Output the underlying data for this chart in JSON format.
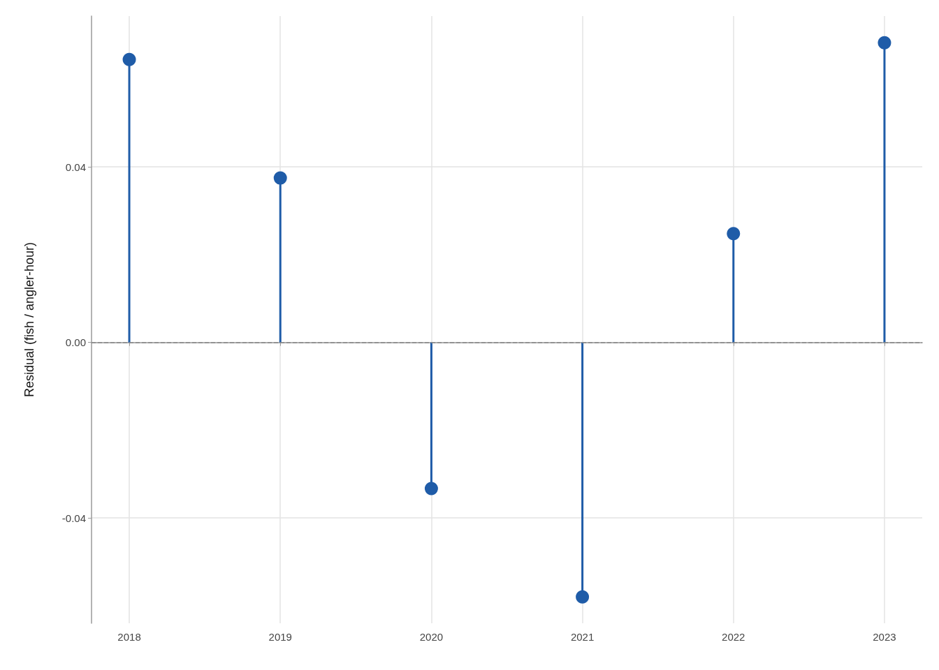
{
  "chart_data": {
    "type": "lollipop",
    "ylabel": "Residual (fish / angler-hour)",
    "x": [
      2018,
      2019,
      2020,
      2021,
      2022,
      2023
    ],
    "series": [
      {
        "color": "#1f5ca8",
        "values": [
          0.0645,
          0.0375,
          -0.0333,
          -0.058,
          0.0248,
          0.0683
        ]
      }
    ],
    "xlim": [
      2017.75,
      2023.25
    ],
    "xticks": [
      2018,
      2019,
      2020,
      2021,
      2022,
      2023
    ],
    "ylim": [
      -0.064,
      0.0744
    ],
    "yticks": [
      -0.04,
      {
        "value": 0,
        "label": "0.00"
      },
      0.04
    ],
    "ref_lines": [
      {
        "axis": "y",
        "value": 0,
        "color": "#888888",
        "line_style": "dashed"
      }
    ],
    "grid": true,
    "marker": "circle"
  }
}
